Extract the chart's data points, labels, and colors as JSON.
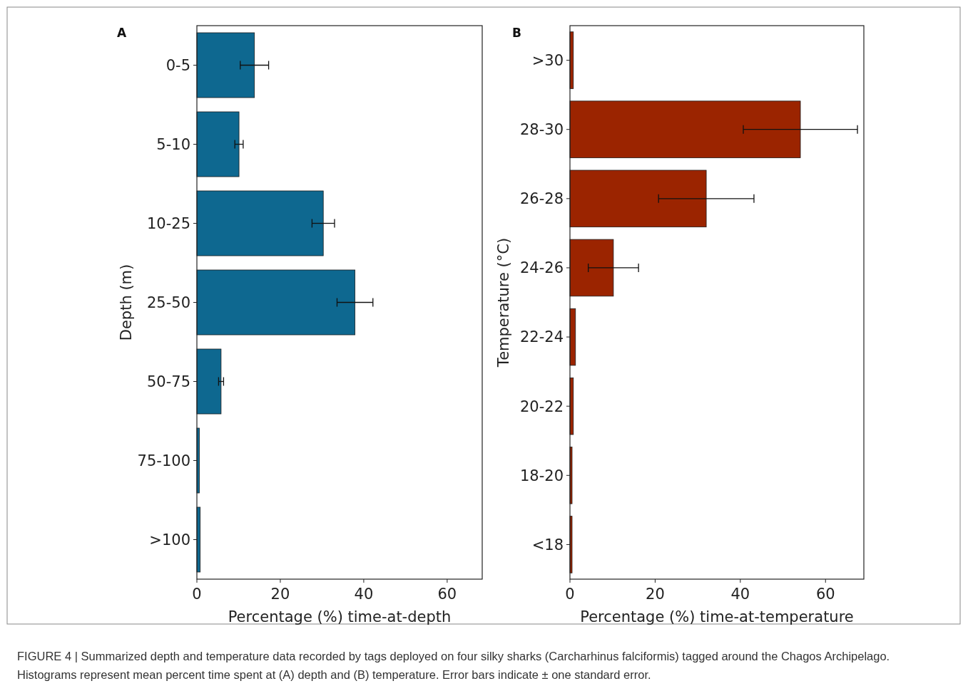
{
  "chart_data": [
    {
      "type": "bar",
      "orientation": "horizontal",
      "title": "A",
      "categories": [
        "0-5",
        "5-10",
        "10-25",
        "25-50",
        "50-75",
        "75-100",
        ">100"
      ],
      "values": [
        13.8,
        10.1,
        30.3,
        37.9,
        5.8,
        0.6,
        0.8
      ],
      "errors": [
        3.4,
        1.0,
        2.7,
        4.3,
        0.6,
        null,
        null
      ],
      "color": "#0e6890",
      "xlim": [
        0,
        68.4
      ],
      "xticks": [
        0,
        20,
        40,
        60
      ],
      "xlabel": "Percentage (%) time-at-depth",
      "ylabel": "Depth (m)",
      "grid": false,
      "annotations": [
        "FIGURE 4 | Summarized depth and temperature data recorded by tags deployed on four silky sharks (Carcharhinus falciformis) tagged around the Chagos Archipelago. Histograms represent mean percent time spent at (A) depth and (B) temperature. Error bars indicate ± one standard error."
      ]
    },
    {
      "type": "bar",
      "orientation": "horizontal",
      "title": "B",
      "categories": [
        ">30",
        "28-30",
        "26-28",
        "24-26",
        "22-24",
        "20-22",
        "18-20",
        "<18"
      ],
      "values": [
        0.8,
        54.1,
        32.0,
        10.2,
        1.3,
        0.8,
        0.5,
        0.5
      ],
      "errors": [
        null,
        13.4,
        11.2,
        5.9,
        null,
        null,
        null,
        null
      ],
      "color": "#9b2400",
      "xlim": [
        0,
        69
      ],
      "xticks": [
        0,
        20,
        40,
        60
      ],
      "xlabel": "Percentage (%) time-at-temperature",
      "ylabel": "Temperature (°C)",
      "grid": false
    }
  ]
}
